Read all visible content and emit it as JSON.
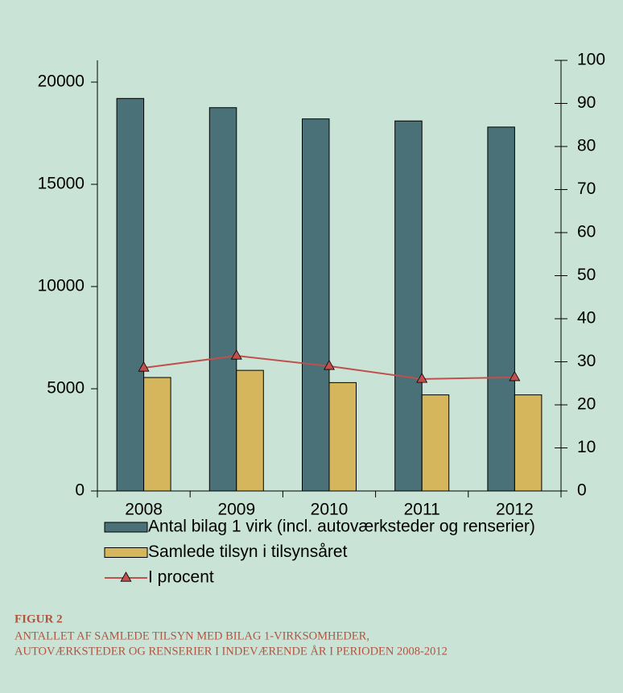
{
  "chart_data": {
    "type": "bar_line",
    "categories": [
      "2008",
      "2009",
      "2010",
      "2011",
      "2012"
    ],
    "series": [
      {
        "name": "Antal bilag 1 virk (incl. autoværksteder og renserier)",
        "color": "#4a7177",
        "type": "bar",
        "values": [
          19200,
          18750,
          18200,
          18100,
          17800
        ]
      },
      {
        "name": "Samlede tilsyn i tilsynsåret",
        "color": "#d6b65c",
        "type": "bar",
        "values": [
          5550,
          5900,
          5300,
          4700,
          4700
        ]
      },
      {
        "name": "I procent",
        "color": "#c0504d",
        "type": "line",
        "axis": "y2",
        "values": [
          28.6,
          31.4,
          29.0,
          26.0,
          26.4
        ]
      }
    ],
    "ylim": [
      0,
      21063
    ],
    "yticks": [
      0,
      5000,
      10000,
      15000,
      20000
    ],
    "y2lim": [
      0,
      100
    ],
    "y2ticks": [
      0,
      10,
      20,
      30,
      40,
      50,
      60,
      70,
      80,
      90,
      100
    ],
    "legend": "bottom"
  },
  "caption": {
    "label": "FIGUR 2",
    "lines": [
      "ANTALLET AF SAMLEDE TILSYN MED BILAG 1-VIRKSOMHEDER,",
      "AUTOVÆRKSTEDER OG RENSERIER I INDEVÆRENDE ÅR I PERIODEN 2008-2012"
    ]
  }
}
